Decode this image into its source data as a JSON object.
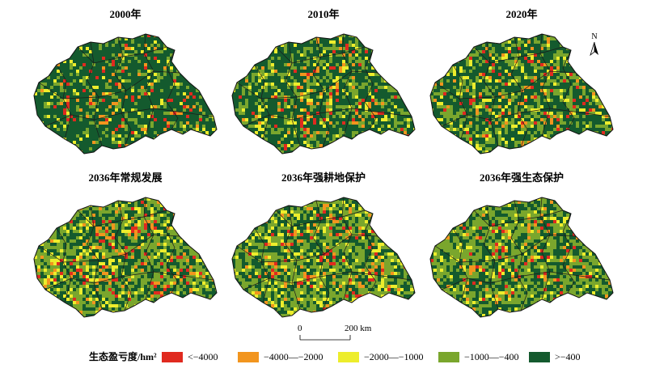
{
  "panels": [
    {
      "title": "2000年",
      "deficit_share": 0.14,
      "moderate_share": 0.16
    },
    {
      "title": "2010年",
      "deficit_share": 0.22,
      "moderate_share": 0.26
    },
    {
      "title": "2020年",
      "deficit_share": 0.2,
      "moderate_share": 0.3
    },
    {
      "title": "2036年常规发展",
      "deficit_share": 0.3,
      "moderate_share": 0.45
    },
    {
      "title": "2036年强耕地保护",
      "deficit_share": 0.28,
      "moderate_share": 0.45
    },
    {
      "title": "2036年强生态保护",
      "deficit_share": 0.18,
      "moderate_share": 0.45
    }
  ],
  "north": {
    "label": "N"
  },
  "scale": {
    "zero": "0",
    "end": "200 km"
  },
  "legend": {
    "title": "生态盈亏度/hm²",
    "items": [
      {
        "label": "<−4000",
        "color": "#e02a1f"
      },
      {
        "label": "−4000—−2000",
        "color": "#f2951e"
      },
      {
        "label": "−2000—−1000",
        "color": "#eded2c"
      },
      {
        "label": "−1000—−400",
        "color": "#7aa62d"
      },
      {
        "label": ">−400",
        "color": "#145a2e"
      }
    ]
  }
}
